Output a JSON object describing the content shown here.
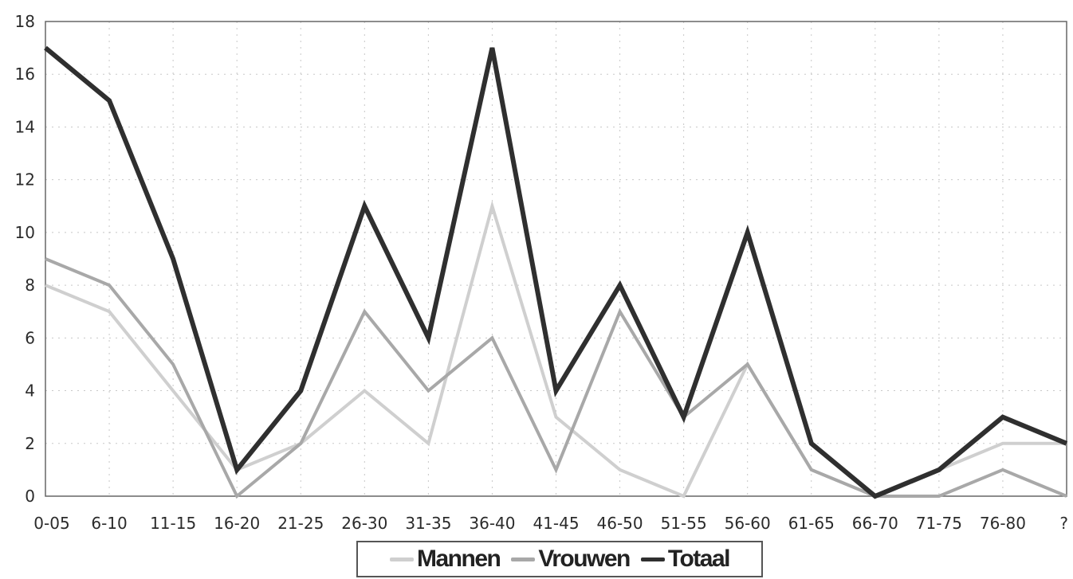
{
  "chart_data": {
    "type": "line",
    "categories": [
      "0-05",
      "6-10",
      "11-15",
      "16-20",
      "21-25",
      "26-30",
      "31-35",
      "36-40",
      "41-45",
      "46-50",
      "51-55",
      "56-60",
      "61-65",
      "66-70",
      "71-75",
      "76-80",
      "?"
    ],
    "series": [
      {
        "name": "Mannen",
        "color": "#cfcfcf",
        "values": [
          8,
          7,
          4,
          1,
          2,
          4,
          2,
          11,
          3,
          1,
          0,
          5,
          1,
          0,
          1,
          2,
          2
        ]
      },
      {
        "name": "Vrouwen",
        "color": "#a8a8a8",
        "values": [
          9,
          8,
          5,
          0,
          2,
          7,
          4,
          6,
          1,
          7,
          3,
          5,
          1,
          0,
          0,
          1,
          0
        ]
      },
      {
        "name": "Totaal",
        "color": "#2f2f2f",
        "values": [
          17,
          15,
          9,
          1,
          4,
          11,
          6,
          17,
          4,
          8,
          3,
          10,
          2,
          0,
          1,
          3,
          2
        ]
      }
    ],
    "y_ticks": [
      "0",
      "2",
      "4",
      "6",
      "8",
      "10",
      "12",
      "14",
      "16",
      "18"
    ],
    "ylim": [
      0,
      18
    ],
    "grid": true,
    "legend_position": "bottom"
  }
}
